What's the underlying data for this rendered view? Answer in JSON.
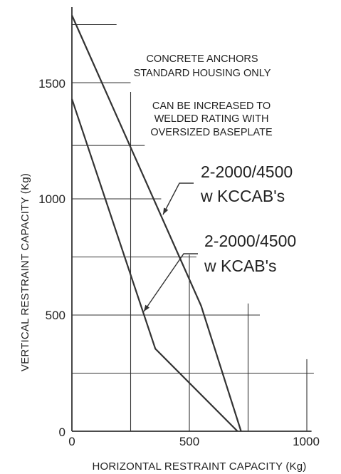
{
  "chart_data": {
    "type": "line",
    "title": "",
    "xlabel": "HORIZONTAL RESTRAINT CAPACITY (Kg)",
    "ylabel": "VERTICAL RESTRAINT CAPACITY (Kg)",
    "xlim": [
      0,
      1020
    ],
    "ylim": [
      0,
      1830
    ],
    "x_ticks": [
      "0",
      "500",
      "1000"
    ],
    "y_ticks": [
      "0",
      "500",
      "1000",
      "1500"
    ],
    "grid": "staggered",
    "annotations": [
      "CONCRETE ANCHORS",
      "STANDARD HOUSING ONLY",
      "CAN BE INCREASED TO",
      "WELDED RATING WITH",
      "OVERSIZED BASEPLATE"
    ],
    "series": [
      {
        "label_lines": [
          "2-2000/4500",
          "w KCCAB's"
        ],
        "x": [
          0,
          550,
          720
        ],
        "y": [
          1790,
          540,
          0
        ]
      },
      {
        "label_lines": [
          "2-2000/4500",
          "w KCAB's"
        ],
        "x": [
          0,
          355,
          705
        ],
        "y": [
          1430,
          355,
          0
        ]
      }
    ]
  }
}
